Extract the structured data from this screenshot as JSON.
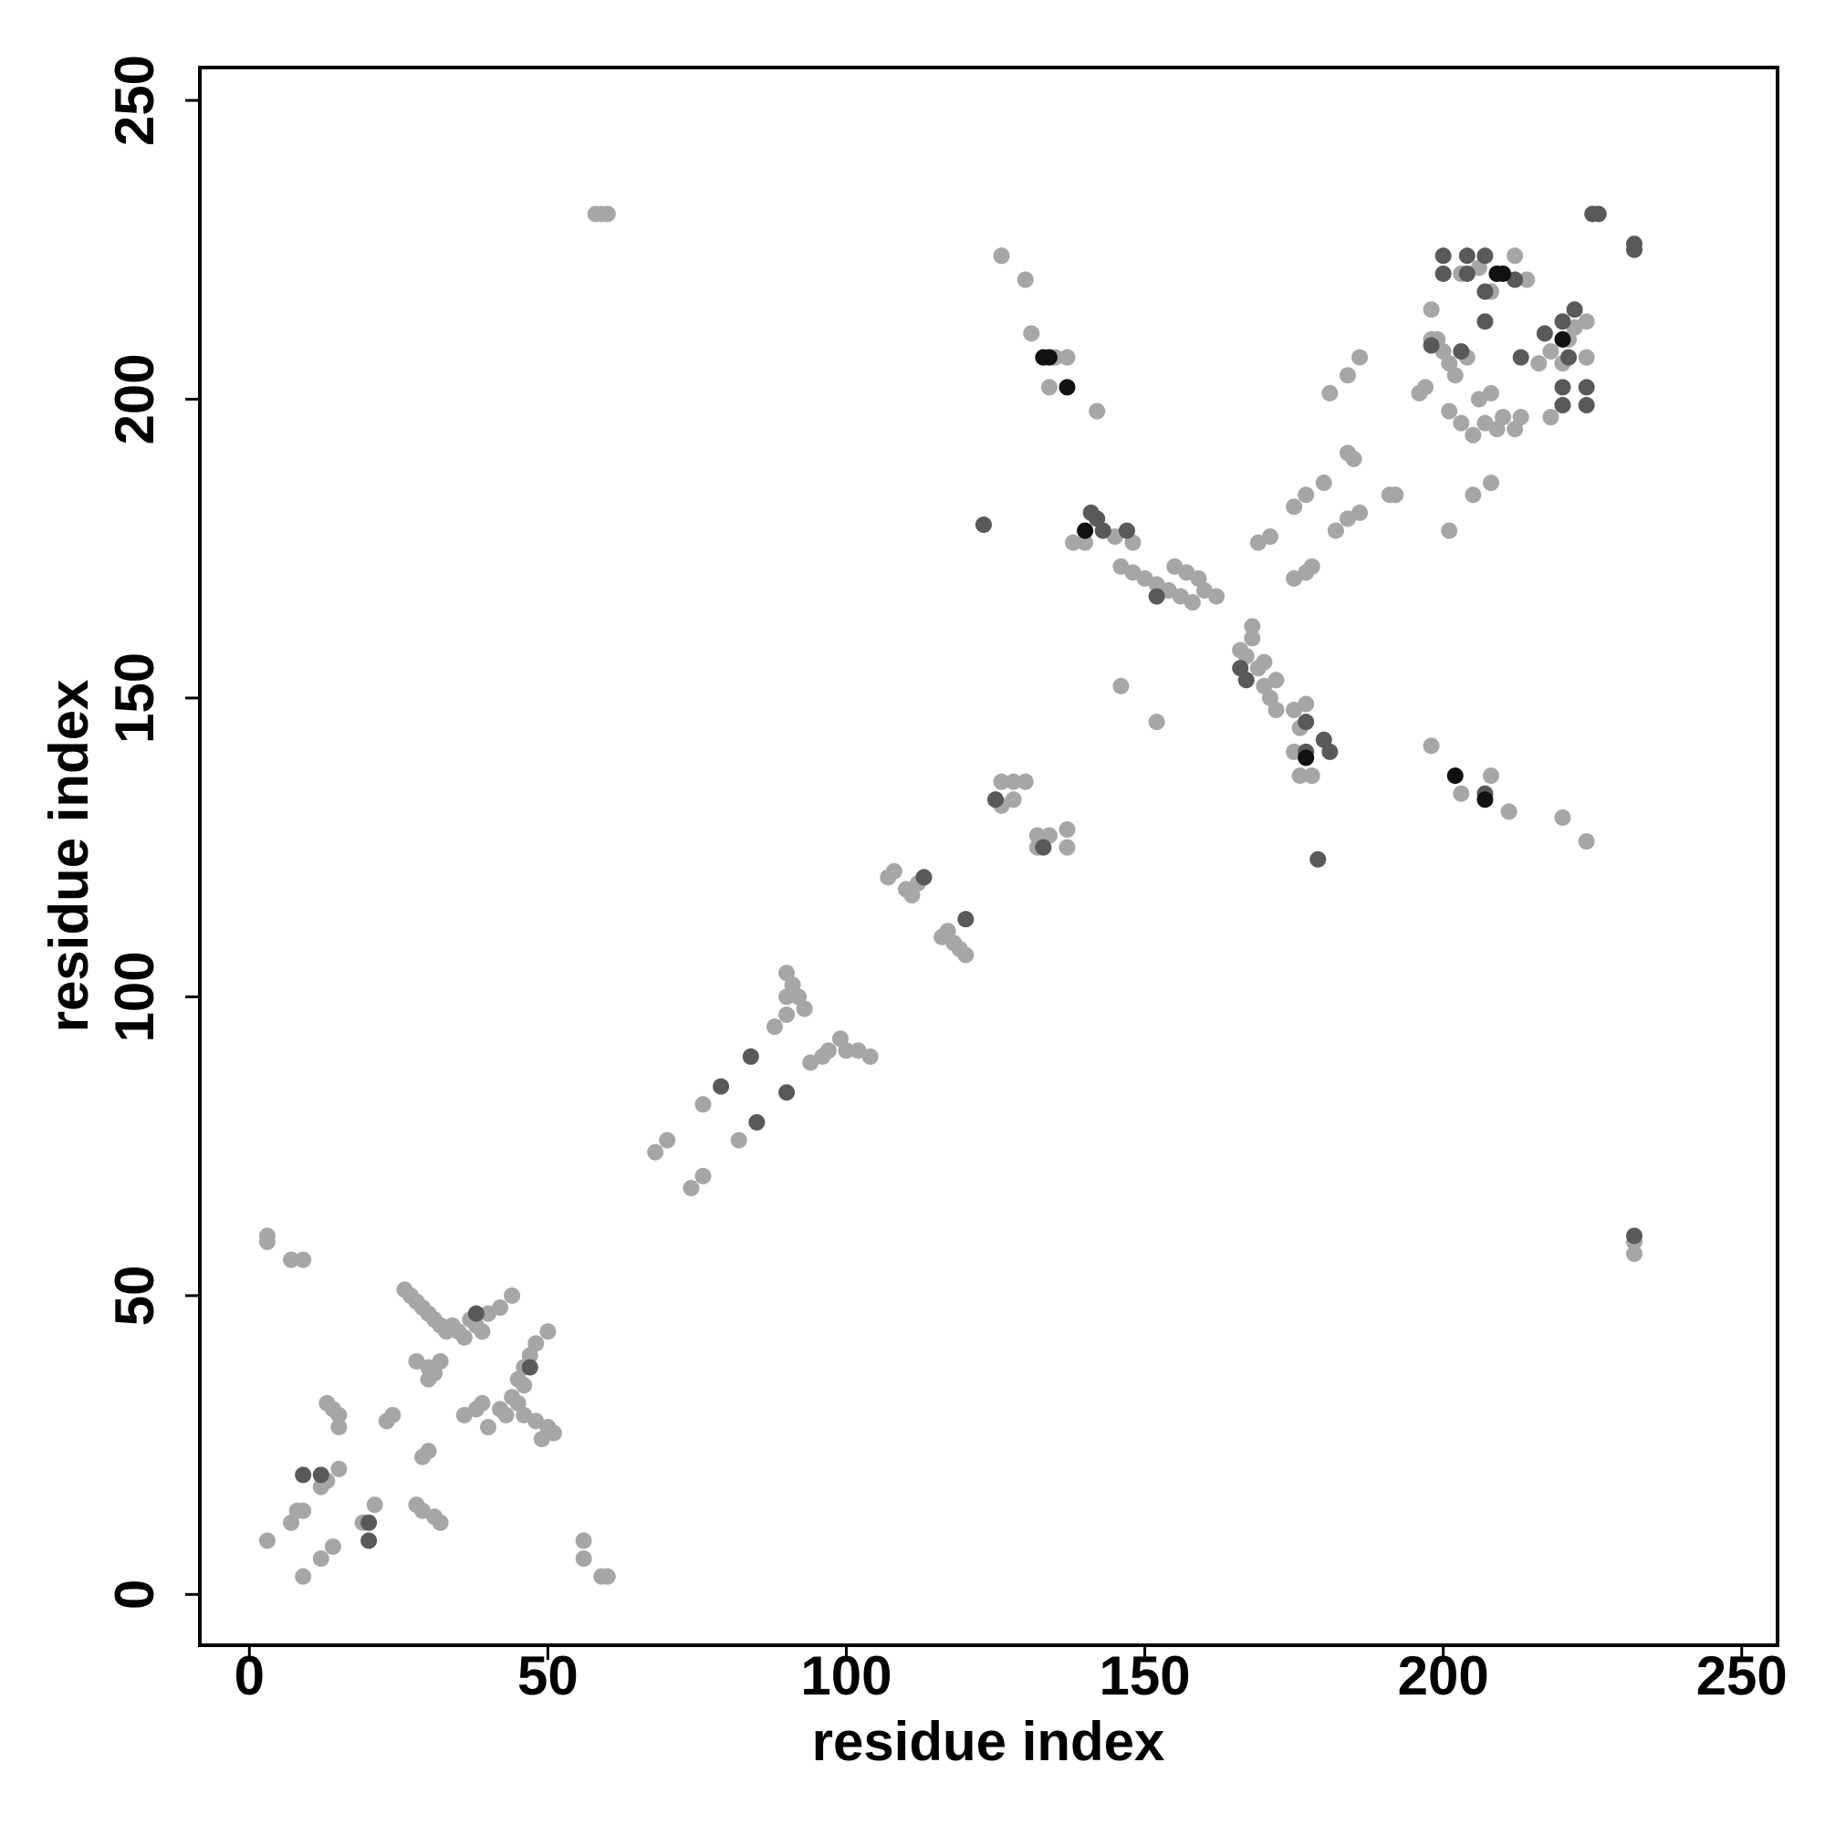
{
  "chart_data": {
    "type": "scatter",
    "x_label": "residue index",
    "y_label": "residue index",
    "xlim": [
      -8.3,
      256
    ],
    "ylim": [
      -8.5,
      255.5
    ],
    "xticks": [
      0,
      50,
      100,
      150,
      200,
      250
    ],
    "yticks": [
      0,
      50,
      100,
      150,
      200,
      250
    ],
    "grid": false,
    "series": [
      {
        "color": "#a6a6a6",
        "x": [
          3,
          3,
          7,
          9,
          3,
          7,
          8,
          9,
          12,
          13,
          15,
          12,
          14,
          9,
          19,
          21,
          23,
          24,
          13,
          14,
          15,
          15,
          28,
          29,
          31,
          32,
          29,
          30,
          26,
          27,
          28,
          29,
          30,
          31,
          32,
          33,
          34,
          35,
          36,
          37,
          38,
          39,
          40,
          42,
          44,
          28,
          30,
          31,
          30,
          32,
          36,
          38,
          39,
          40,
          42,
          43,
          44,
          45,
          46,
          47,
          48,
          50,
          46,
          45,
          46,
          48,
          50,
          51,
          49,
          56,
          56,
          59,
          60,
          58,
          59,
          60,
          68,
          70,
          74,
          76,
          76,
          82,
          88,
          90,
          90,
          90,
          91,
          92,
          93,
          94,
          96,
          97,
          99,
          100,
          102,
          104,
          108,
          110,
          111,
          112,
          107,
          116,
          118,
          119,
          120,
          117,
          125,
          126,
          128,
          130,
          126,
          128,
          132,
          134,
          137,
          137,
          132,
          126,
          130,
          131,
          135,
          134,
          137,
          142,
          145,
          148,
          138,
          146,
          148,
          150,
          152,
          154,
          156,
          158,
          160,
          162,
          155,
          157,
          159,
          166,
          167,
          168,
          169,
          170,
          171,
          172,
          170,
          172,
          168,
          175,
          176,
          178,
          176,
          175,
          177,
          146,
          152,
          169,
          171,
          175,
          177,
          178,
          175,
          177,
          180,
          182,
          184,
          186,
          184,
          185,
          191,
          192,
          181,
          184,
          186,
          196,
          197,
          198,
          200,
          201,
          202,
          204,
          199,
          198,
          201,
          203,
          205,
          207,
          209,
          210,
          212,
          213,
          206,
          208,
          205,
          208,
          198,
          203,
          211,
          220,
          224,
          203,
          206,
          208,
          212,
          214,
          218,
          216,
          218,
          221,
          222,
          224,
          224,
          220,
          232,
          232,
          201,
          208,
          140
        ],
        "values": [
          59,
          60,
          56,
          56,
          9,
          12,
          14,
          14,
          18,
          19,
          21,
          6,
          8,
          3,
          12,
          15,
          29,
          30,
          32,
          31,
          30,
          28,
          15,
          14,
          13,
          12,
          23,
          24,
          51,
          50,
          49,
          48,
          47,
          46,
          45,
          44,
          45,
          44,
          43,
          46,
          45,
          44,
          47,
          48,
          50,
          39,
          38,
          37,
          36,
          39,
          30,
          31,
          32,
          28,
          31,
          30,
          33,
          36,
          38,
          40,
          42,
          44,
          35,
          32,
          30,
          29,
          28,
          27,
          26,
          9,
          6,
          3,
          3,
          231,
          231,
          231,
          74,
          76,
          68,
          70,
          82,
          76,
          95,
          97,
          100,
          104,
          102,
          100,
          98,
          89,
          90,
          91,
          93,
          91,
          91,
          90,
          121,
          118,
          117,
          119,
          120,
          110,
          109,
          108,
          107,
          111,
          133,
          136,
          136,
          136,
          132,
          133,
          127,
          127,
          128,
          125,
          125,
          224,
          220,
          211,
          207,
          202,
          207,
          198,
          177,
          176,
          176,
          172,
          171,
          170,
          169,
          168,
          167,
          166,
          168,
          167,
          172,
          171,
          170,
          158,
          157,
          160,
          155,
          152,
          150,
          148,
          156,
          153,
          162,
          148,
          145,
          137,
          137,
          141,
          149,
          152,
          146,
          176,
          177,
          170,
          171,
          172,
          182,
          184,
          186,
          178,
          180,
          181,
          191,
          190,
          184,
          184,
          201,
          204,
          207,
          201,
          202,
          210,
          208,
          206,
          204,
          207,
          210,
          215,
          198,
          196,
          194,
          196,
          195,
          197,
          195,
          197,
          200,
          201,
          184,
          186,
          142,
          134,
          131,
          130,
          126,
          221,
          222,
          218,
          224,
          220,
          197,
          206,
          208,
          210,
          212,
          207,
          213,
          206,
          57,
          59,
          178,
          137,
          176
        ]
      },
      {
        "color": "#595959",
        "x": [
          9,
          12,
          20,
          20,
          38,
          47,
          85,
          79,
          84,
          90,
          113,
          120,
          125,
          133,
          123,
          141,
          142,
          143,
          147,
          152,
          166,
          167,
          177,
          177,
          180,
          181,
          179,
          198,
          200,
          200,
          204,
          204,
          203,
          207,
          207,
          207,
          209,
          212,
          213,
          217,
          220,
          220,
          220,
          221,
          222,
          224,
          224,
          225,
          226,
          232,
          232,
          232,
          207
        ],
        "values": [
          20,
          20,
          9,
          12,
          47,
          38,
          79,
          85,
          90,
          84,
          120,
          113,
          133,
          125,
          179,
          181,
          180,
          178,
          178,
          167,
          155,
          153,
          141,
          146,
          143,
          141,
          123,
          209,
          224,
          221,
          224,
          221,
          208,
          224,
          218,
          213,
          221,
          220,
          207,
          211,
          213,
          202,
          199,
          207,
          215,
          202,
          199,
          231,
          231,
          226,
          225,
          60,
          134
        ]
      },
      {
        "color": "#111111",
        "x": [
          133,
          134,
          137,
          140,
          177,
          202,
          207,
          210,
          220,
          209
        ],
        "values": [
          207,
          207,
          202,
          178,
          140,
          137,
          133,
          221,
          210,
          221
        ]
      }
    ]
  }
}
